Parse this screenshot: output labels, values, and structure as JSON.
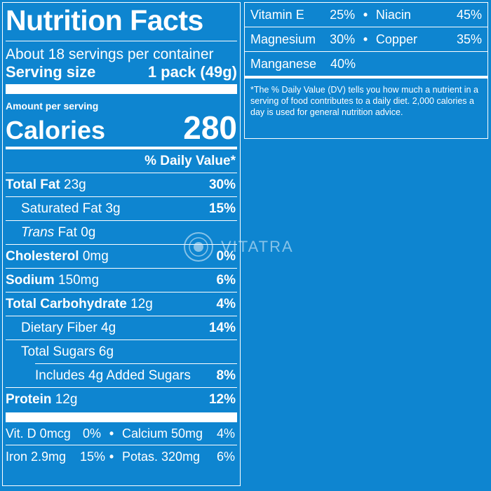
{
  "header": {
    "title": "Nutrition Facts",
    "servings_per_container": "About 18 servings per container",
    "serving_size_label": "Serving size",
    "serving_size_value": "1 pack (49g)"
  },
  "calories": {
    "amount_label": "Amount per serving",
    "label": "Calories",
    "value": "280"
  },
  "daily_value_header": "% Daily Value*",
  "nutrients": [
    {
      "name": "Total Fat",
      "amount": "23g",
      "dv": "30%"
    },
    {
      "name": "Saturated Fat",
      "amount": "3g",
      "dv": "15%"
    },
    {
      "name_italic": "Trans",
      "name": "Fat",
      "amount": "0g"
    },
    {
      "name": "Cholesterol",
      "amount": "0mg",
      "dv": "0%"
    },
    {
      "name": "Sodium",
      "amount": "150mg",
      "dv": "6%"
    },
    {
      "name": "Total Carbohydrate",
      "amount": "12g",
      "dv": "4%"
    },
    {
      "name": "Dietary Fiber",
      "amount": "4g",
      "dv": "14%"
    },
    {
      "name": "Total Sugars",
      "amount": "6g"
    },
    {
      "name": "Includes 4g Added Sugars",
      "dv": "8%"
    },
    {
      "name": "Protein",
      "amount": "12g",
      "dv": "12%"
    }
  ],
  "vitamins_left": [
    {
      "a_name": "Vit. D 0mcg",
      "a_dv": "0%",
      "b_name": "Calcium 50mg",
      "b_dv": "4%"
    },
    {
      "a_name": "Iron 2.9mg",
      "a_dv": "15%",
      "b_name": "Potas. 320mg",
      "b_dv": "6%"
    }
  ],
  "vitamins_right": [
    {
      "a_name": "Vitamin E",
      "a_dv": "25%",
      "b_name": "Niacin",
      "b_dv": "45%"
    },
    {
      "a_name": "Magnesium",
      "a_dv": "30%",
      "b_name": "Copper",
      "b_dv": "35%"
    },
    {
      "a_name": "Manganese",
      "a_dv": "40%"
    }
  ],
  "bullet": "•",
  "footnote": "*The % Daily Value (DV) tells you how much a nutrient in a serving of food contributes to a daily diet. 2,000 calories a day is used for general nutrition advice.",
  "watermark": "VITATRA",
  "colors": {
    "background": "#0e85d0",
    "text": "#ffffff"
  }
}
